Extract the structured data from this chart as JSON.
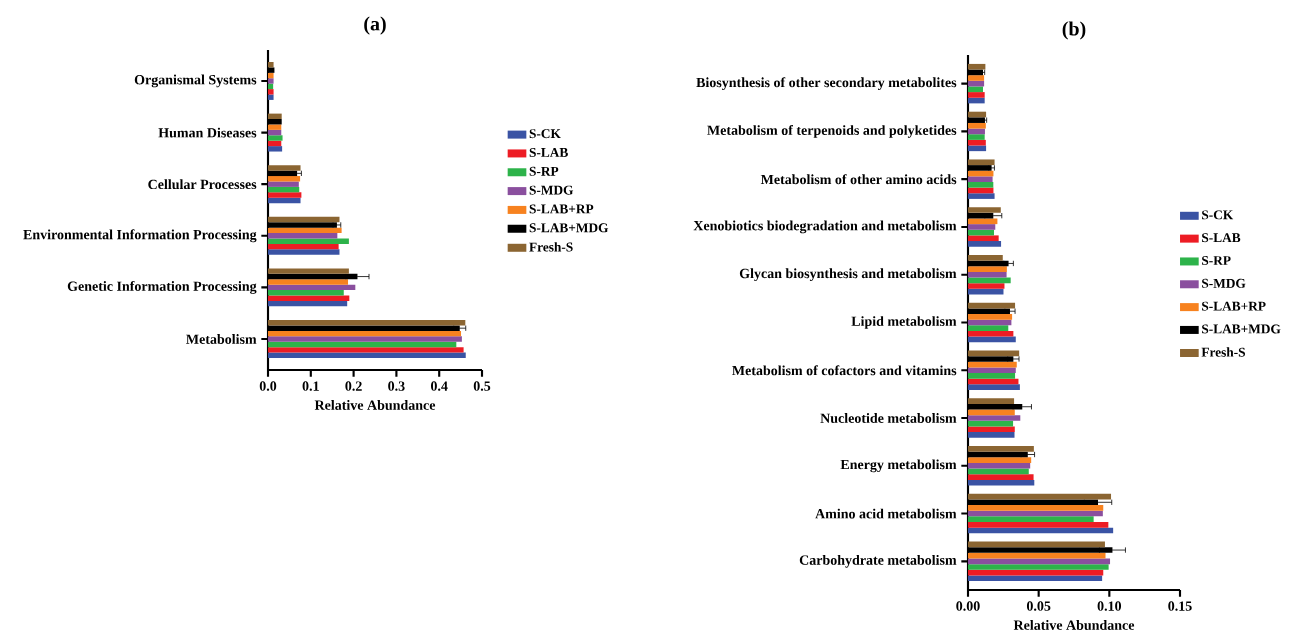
{
  "chart_data": [
    {
      "type": "bar",
      "orientation": "horizontal",
      "title": "(a)",
      "xlabel": "Relative Abundance",
      "legend": "right",
      "categories": [
        "Organismal Systems",
        "Human Diseases",
        "Cellular Processes",
        "Environmental Information Processing",
        "Genetic Information Processing",
        "Metabolism"
      ],
      "xlim": [
        0,
        0.5
      ],
      "xticks": [
        {
          "value": 0,
          "label": "0.0"
        },
        {
          "value": 0.1,
          "label": "0.1"
        },
        {
          "value": 0.2,
          "label": "0.2"
        },
        {
          "value": 0.3,
          "label": "0.3"
        },
        {
          "value": 0.4,
          "label": "0.4"
        },
        {
          "value": 0.5,
          "label": "0.5"
        }
      ],
      "series": [
        {
          "name": "S-CK",
          "color": "#3a53a4",
          "values": [
            0.013,
            0.033,
            0.076,
            0.167,
            0.185,
            0.462
          ]
        },
        {
          "name": "S-LAB",
          "color": "#ed1c24",
          "values": [
            0.013,
            0.031,
            0.078,
            0.165,
            0.19,
            0.457
          ]
        },
        {
          "name": "S-RP",
          "color": "#2db34a",
          "values": [
            0.012,
            0.034,
            0.073,
            0.189,
            0.177,
            0.44
          ]
        },
        {
          "name": "S-MDG",
          "color": "#8a4f9e",
          "values": [
            0.013,
            0.031,
            0.072,
            0.162,
            0.204,
            0.453
          ]
        },
        {
          "name": "S-LAB+RP",
          "color": "#f7821f",
          "values": [
            0.013,
            0.031,
            0.075,
            0.172,
            0.187,
            0.451
          ]
        },
        {
          "name": "S-LAB+MDG",
          "color": "#000000",
          "values": [
            0.015,
            0.032,
            0.068,
            0.161,
            0.209,
            0.448
          ],
          "errors": [
            null,
            null,
            0.01,
            0.009,
            0.027,
            0.014
          ]
        },
        {
          "name": "Fresh-S",
          "color": "#8b6532",
          "values": [
            0.013,
            0.032,
            0.076,
            0.167,
            0.189,
            0.461
          ]
        }
      ]
    },
    {
      "type": "bar",
      "orientation": "horizontal",
      "title": "(b)",
      "xlabel": "Relative Abundance",
      "legend": "right",
      "categories": [
        "Biosynthesis of other secondary metabolites",
        "Metabolism of terpenoids and polyketides",
        "Metabolism of other amino acids",
        "Xenobiotics biodegradation and metabolism",
        "Glycan biosynthesis and metabolism",
        "Lipid metabolism",
        "Metabolism of cofactors and vitamins",
        "Nucleotide metabolism",
        "Energy metabolism",
        "Amino acid metabolism",
        "Carbohydrate metabolism"
      ],
      "xlim": [
        0,
        0.15
      ],
      "xticks": [
        {
          "value": 0,
          "label": "0.00"
        },
        {
          "value": 0.05,
          "label": "0.05"
        },
        {
          "value": 0.1,
          "label": "0.10"
        },
        {
          "value": 0.15,
          "label": "0.15"
        }
      ],
      "series": [
        {
          "name": "S-CK",
          "color": "#3a53a4",
          "values": [
            0.0118,
            0.0128,
            0.0188,
            0.0234,
            0.0251,
            0.0338,
            0.0367,
            0.0329,
            0.0469,
            0.1027,
            0.0949
          ]
        },
        {
          "name": "S-LAB",
          "color": "#ed1c24",
          "values": [
            0.0118,
            0.0126,
            0.018,
            0.0217,
            0.0258,
            0.0321,
            0.0357,
            0.0331,
            0.0464,
            0.0993,
            0.0957
          ]
        },
        {
          "name": "S-RP",
          "color": "#2db34a",
          "values": [
            0.0106,
            0.0118,
            0.0179,
            0.0184,
            0.0302,
            0.0285,
            0.0333,
            0.0319,
            0.043,
            0.0889,
            0.0995
          ]
        },
        {
          "name": "S-MDG",
          "color": "#8a4f9e",
          "values": [
            0.0114,
            0.012,
            0.0174,
            0.0193,
            0.0273,
            0.0307,
            0.0338,
            0.037,
            0.044,
            0.0954,
            0.1005
          ]
        },
        {
          "name": "S-LAB+RP",
          "color": "#f7821f",
          "values": [
            0.0114,
            0.0126,
            0.018,
            0.0208,
            0.0275,
            0.0312,
            0.0345,
            0.0331,
            0.0447,
            0.0957,
            0.0973
          ]
        },
        {
          "name": "S-LAB+MDG",
          "color": "#000000",
          "values": [
            0.0106,
            0.012,
            0.0167,
            0.0179,
            0.0287,
            0.0297,
            0.0321,
            0.0384,
            0.0423,
            0.092,
            0.1022
          ],
          "errors": [
            0.0012,
            0.0012,
            0.002,
            0.006,
            0.0034,
            0.0036,
            0.004,
            0.0065,
            0.0048,
            0.0097,
            0.0092
          ]
        },
        {
          "name": "Fresh-S",
          "color": "#8b6532",
          "values": [
            0.0123,
            0.0128,
            0.0188,
            0.0232,
            0.0246,
            0.0333,
            0.0362,
            0.0326,
            0.0466,
            0.1012,
            0.0969
          ]
        }
      ]
    }
  ]
}
